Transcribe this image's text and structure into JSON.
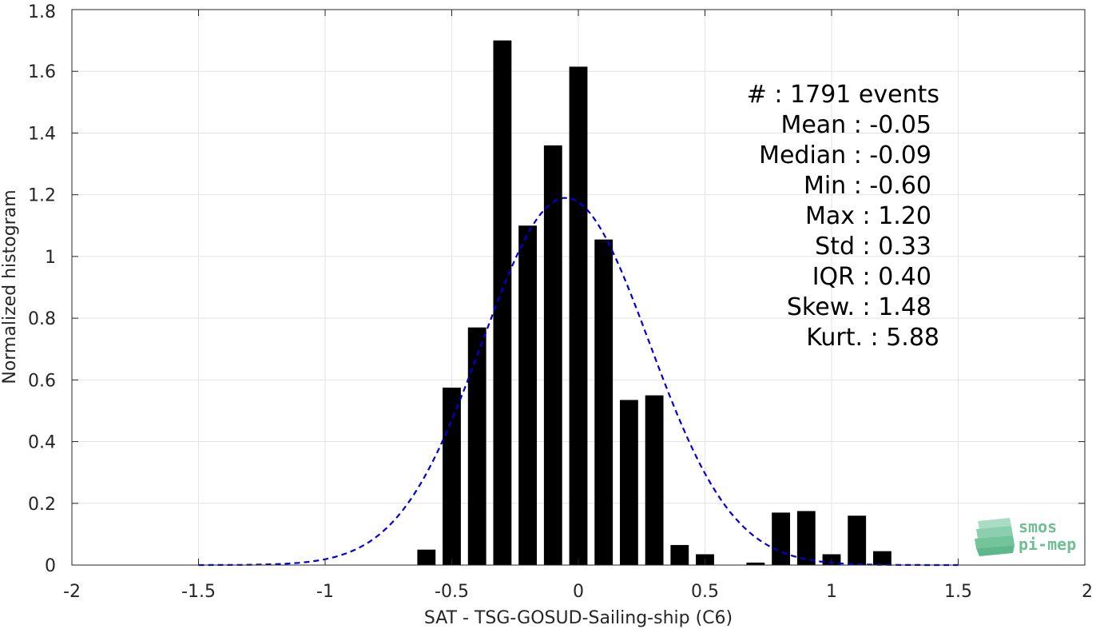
{
  "chart_data": {
    "type": "bar",
    "xlabel": "SAT - TSG-GOSUD-Sailing-ship (C6)",
    "ylabel": "Normalized histogram",
    "xlim": [
      -2,
      2
    ],
    "ylim": [
      0,
      1.8
    ],
    "x_ticks": [
      -2,
      -1.5,
      -1,
      -0.5,
      0,
      0.5,
      1,
      1.5,
      2
    ],
    "x_tick_labels": [
      "-2",
      "-1.5",
      "-1",
      "-0.5",
      "0",
      "0.5",
      "1",
      "1.5",
      "2"
    ],
    "y_ticks": [
      0,
      0.2,
      0.4,
      0.6,
      0.8,
      1,
      1.2,
      1.4,
      1.6,
      1.8
    ],
    "y_tick_labels": [
      "0",
      "0.2",
      "0.4",
      "0.6",
      "0.8",
      "1",
      "1.2",
      "1.4",
      "1.6",
      "1.8"
    ],
    "grid": true,
    "bar_color": "#000000",
    "bin_width": 0.1,
    "bars": {
      "x": [
        -0.6,
        -0.5,
        -0.4,
        -0.3,
        -0.2,
        -0.1,
        0.0,
        0.1,
        0.2,
        0.3,
        0.4,
        0.5,
        0.7,
        0.8,
        0.9,
        1.0,
        1.1,
        1.2
      ],
      "values": [
        0.05,
        0.575,
        0.77,
        1.7,
        1.1,
        1.36,
        1.615,
        1.055,
        0.535,
        0.55,
        0.065,
        0.035,
        0.008,
        0.17,
        0.175,
        0.035,
        0.16,
        0.045
      ]
    },
    "gaussian_fit": {
      "style": "dashed",
      "color": "#0000dd",
      "mean": -0.05,
      "std": 0.33,
      "peak": 1.19,
      "x_range": [
        -1.5,
        1.5
      ]
    },
    "stats": [
      {
        "label": "#  ",
        "value": "1791 events"
      },
      {
        "label": "Mean",
        "value": "-0.05"
      },
      {
        "label": "Median",
        "value": "-0.09"
      },
      {
        "label": "Min",
        "value": "-0.60"
      },
      {
        "label": "Max",
        "value": "1.20"
      },
      {
        "label": "Std",
        "value": "0.33"
      },
      {
        "label": "IQR",
        "value": "0.40"
      },
      {
        "label": "Skew.",
        "value": "1.48"
      },
      {
        "label": "Kurt.",
        "value": "5.88"
      }
    ]
  },
  "logo": {
    "line1": "smos",
    "line2": "pi-mep",
    "color": "#6fbf96"
  }
}
